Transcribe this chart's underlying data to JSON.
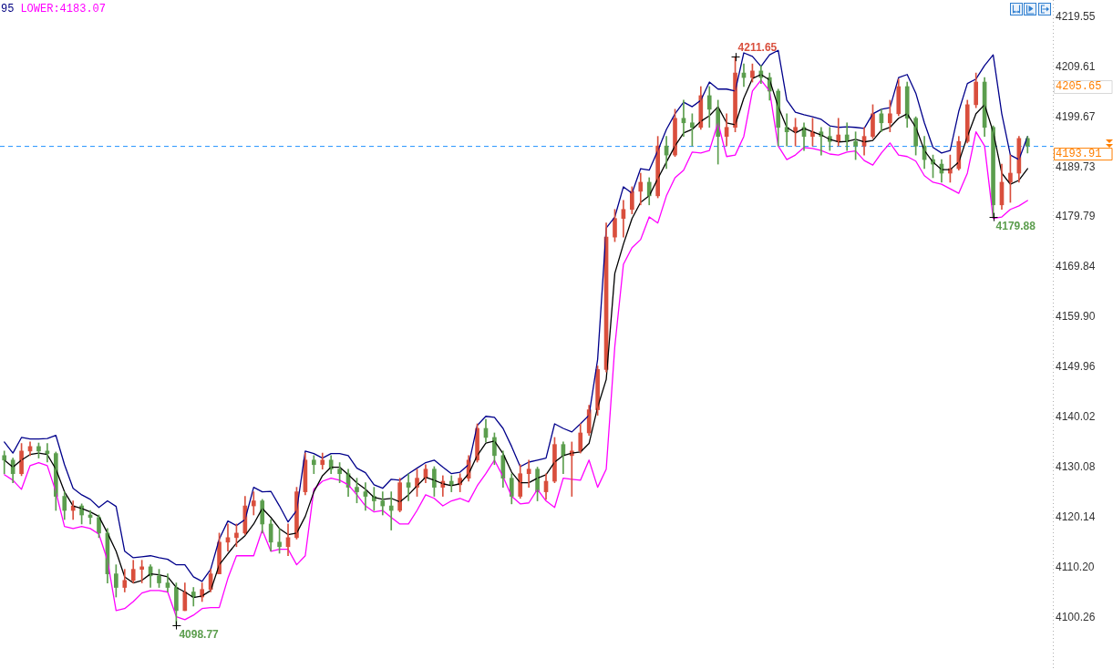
{
  "chart_data": {
    "type": "candlestick",
    "categories": [
      null,
      null,
      null,
      null,
      null,
      null,
      null,
      null,
      null,
      null,
      null,
      null,
      null,
      null,
      null,
      null,
      null,
      null,
      null,
      null,
      null,
      null,
      null,
      null,
      null,
      null,
      null,
      null,
      null,
      null,
      null,
      null,
      null,
      null,
      null,
      null,
      null,
      null,
      null,
      null,
      null,
      null,
      null,
      null,
      null,
      null,
      null,
      null,
      null,
      null,
      null,
      null,
      null,
      null,
      null,
      null,
      null,
      null,
      null,
      null,
      null,
      null,
      null,
      null,
      null,
      null,
      null,
      null,
      null,
      null,
      null,
      null,
      null,
      null,
      null,
      null,
      null,
      null,
      null,
      null,
      null,
      null,
      null,
      null,
      null,
      null,
      null,
      null,
      null,
      null,
      null,
      null,
      null,
      null,
      null,
      null,
      null,
      null,
      null,
      null,
      null,
      null,
      null,
      null,
      null,
      null,
      null,
      null,
      null,
      null,
      null,
      null,
      null,
      null,
      null,
      null,
      null,
      null,
      null,
      null
    ],
    "ohlc": [
      [
        4132.4,
        4133.3,
        4128.8,
        4131.5
      ],
      [
        4131.5,
        4131.9,
        4127.0,
        4128.8
      ],
      [
        4128.8,
        4134.8,
        4128.4,
        4133.3
      ],
      [
        4133.3,
        4135.1,
        4132.4,
        4134.2
      ],
      [
        4134.2,
        4134.9,
        4131.9,
        4133.3
      ],
      [
        4133.3,
        4134.8,
        4131.1,
        4132.8
      ],
      [
        4132.8,
        4133.1,
        4121.5,
        4124.3
      ],
      [
        4124.3,
        4125.2,
        4119.7,
        4121.5
      ],
      [
        4121.5,
        4123.4,
        4119.7,
        4122.4
      ],
      [
        4122.4,
        4122.8,
        4118.8,
        4120.6
      ],
      [
        4120.6,
        4121.5,
        4118.8,
        4120.1
      ],
      [
        4120.1,
        4120.6,
        4116.1,
        4117.0
      ],
      [
        4117.0,
        4117.9,
        4107.1,
        4108.9
      ],
      [
        4108.9,
        4110.7,
        4104.3,
        4106.2
      ],
      [
        4106.2,
        4109.8,
        4105.3,
        4107.6
      ],
      [
        4107.6,
        4111.6,
        4107.1,
        4109.8
      ],
      [
        4109.8,
        4111.6,
        4107.1,
        4110.3
      ],
      [
        4110.3,
        4110.7,
        4106.2,
        4108.5
      ],
      [
        4108.5,
        4109.8,
        4106.2,
        4107.1
      ],
      [
        4107.1,
        4108.9,
        4105.3,
        4106.2
      ],
      [
        4106.2,
        4107.1,
        4098.77,
        4101.6
      ],
      [
        4101.6,
        4107.1,
        4101.6,
        4105.3
      ],
      [
        4105.3,
        4106.2,
        4102.5,
        4104.3
      ],
      [
        4104.3,
        4107.1,
        4103.4,
        4105.8
      ],
      [
        4105.8,
        4109.8,
        4105.3,
        4108.9
      ],
      [
        4108.9,
        4117.0,
        4108.9,
        4115.2
      ],
      [
        4115.2,
        4118.8,
        4113.4,
        4116.1
      ],
      [
        4116.1,
        4118.8,
        4114.3,
        4117.0
      ],
      [
        4117.0,
        4124.3,
        4116.7,
        4122.4
      ],
      [
        4122.4,
        4125.2,
        4120.6,
        4123.4
      ],
      [
        4123.4,
        4123.7,
        4117.0,
        4118.8
      ],
      [
        4118.8,
        4119.7,
        4113.4,
        4115.2
      ],
      [
        4115.2,
        4117.9,
        4113.0,
        4114.3
      ],
      [
        4114.3,
        4118.8,
        4112.5,
        4116.1
      ],
      [
        4116.1,
        4126.1,
        4115.8,
        4125.2
      ],
      [
        4125.2,
        4132.9,
        4124.6,
        4131.5
      ],
      [
        4131.5,
        4132.4,
        4128.8,
        4130.6
      ],
      [
        4130.6,
        4132.9,
        4129.7,
        4131.5
      ],
      [
        4131.5,
        4132.4,
        4128.8,
        4129.7
      ],
      [
        4129.7,
        4131.0,
        4127.0,
        4128.8
      ],
      [
        4128.8,
        4129.7,
        4124.3,
        4126.1
      ],
      [
        4126.1,
        4127.9,
        4123.0,
        4125.2
      ],
      [
        4125.2,
        4127.0,
        4121.5,
        4124.3
      ],
      [
        4124.3,
        4126.1,
        4121.5,
        4123.4
      ],
      [
        4123.4,
        4125.2,
        4120.6,
        4122.4
      ],
      [
        4122.4,
        4125.2,
        4117.6,
        4121.5
      ],
      [
        4121.5,
        4127.9,
        4121.2,
        4127.0
      ],
      [
        4127.0,
        4128.8,
        4123.4,
        4126.1
      ],
      [
        4126.1,
        4129.7,
        4124.3,
        4127.9
      ],
      [
        4127.9,
        4130.6,
        4127.0,
        4129.7
      ],
      [
        4129.7,
        4130.2,
        4124.3,
        4126.1
      ],
      [
        4126.1,
        4128.4,
        4124.3,
        4127.3
      ],
      [
        4127.3,
        4128.4,
        4125.2,
        4126.6
      ],
      [
        4126.6,
        4128.8,
        4125.2,
        4127.9
      ],
      [
        4127.9,
        4132.4,
        4127.3,
        4131.5
      ],
      [
        4131.5,
        4138.7,
        4131.1,
        4137.8
      ],
      [
        4137.8,
        4139.6,
        4135.1,
        4136.0
      ],
      [
        4136.0,
        4136.9,
        4130.6,
        4132.4
      ],
      [
        4132.4,
        4133.3,
        4126.1,
        4127.9
      ],
      [
        4127.9,
        4128.8,
        4122.8,
        4124.3
      ],
      [
        4124.3,
        4130.6,
        4123.9,
        4128.8
      ],
      [
        4128.8,
        4131.5,
        4126.1,
        4129.7
      ],
      [
        4129.7,
        4130.1,
        4123.4,
        4125.2
      ],
      [
        4125.2,
        4128.8,
        4123.7,
        4127.3
      ],
      [
        4127.3,
        4136.0,
        4127.0,
        4134.6
      ],
      [
        4134.6,
        4135.1,
        4128.8,
        4132.4
      ],
      [
        4132.4,
        4135.1,
        4124.3,
        4133.3
      ],
      [
        4133.3,
        4138.7,
        4132.9,
        4136.9
      ],
      [
        4136.9,
        4142.4,
        4136.4,
        4141.5
      ],
      [
        4141.5,
        4150.2,
        4140.4,
        4149.5
      ],
      [
        4149.5,
        4178.6,
        4149.0,
        4175.8
      ],
      [
        4175.8,
        4181.3,
        4174.9,
        4179.5
      ],
      [
        4179.5,
        4183.1,
        4175.8,
        4181.3
      ],
      [
        4181.3,
        4185.8,
        4180.4,
        4184.9
      ],
      [
        4184.9,
        4188.5,
        4182.2,
        4186.7
      ],
      [
        4186.7,
        4187.6,
        4182.2,
        4184.0
      ],
      [
        4184.0,
        4195.8,
        4183.6,
        4193.9
      ],
      [
        4193.9,
        4195.8,
        4189.4,
        4192.1
      ],
      [
        4192.1,
        4201.2,
        4191.8,
        4199.4
      ],
      [
        4199.4,
        4203.0,
        4195.8,
        4198.5
      ],
      [
        4198.5,
        4200.3,
        4193.9,
        4197.6
      ],
      [
        4197.6,
        4205.7,
        4197.2,
        4203.9
      ],
      [
        4203.9,
        4205.7,
        4197.6,
        4201.2
      ],
      [
        4201.2,
        4203.0,
        4190.3,
        4195.8
      ],
      [
        4195.8,
        4200.3,
        4193.9,
        4197.6
      ],
      [
        4197.6,
        4211.65,
        4196.7,
        4208.4
      ],
      [
        4208.4,
        4210.2,
        4205.7,
        4207.5
      ],
      [
        4207.5,
        4210.2,
        4206.6,
        4208.8
      ],
      [
        4208.8,
        4209.9,
        4206.3,
        4207.5
      ],
      [
        4207.5,
        4208.4,
        4203.0,
        4204.8
      ],
      [
        4204.8,
        4205.2,
        4193.9,
        4197.6
      ],
      [
        4197.6,
        4200.3,
        4193.9,
        4196.7
      ],
      [
        4196.7,
        4199.4,
        4193.9,
        4197.6
      ],
      [
        4197.6,
        4198.5,
        4193.0,
        4195.8
      ],
      [
        4195.8,
        4199.4,
        4193.9,
        4196.7
      ],
      [
        4196.7,
        4197.6,
        4192.1,
        4195.8
      ],
      [
        4195.8,
        4197.6,
        4193.0,
        4194.8
      ],
      [
        4194.8,
        4199.4,
        4193.9,
        4196.1
      ],
      [
        4196.1,
        4198.5,
        4193.0,
        4194.8
      ],
      [
        4194.8,
        4196.7,
        4191.2,
        4193.9
      ],
      [
        4193.9,
        4197.6,
        4192.1,
        4195.8
      ],
      [
        4195.8,
        4202.1,
        4195.4,
        4200.3
      ],
      [
        4200.3,
        4201.2,
        4196.7,
        4198.5
      ],
      [
        4198.5,
        4203.0,
        4196.7,
        4200.3
      ],
      [
        4200.3,
        4207.2,
        4199.9,
        4205.7
      ],
      [
        4205.7,
        4206.6,
        4197.6,
        4199.4
      ],
      [
        4199.4,
        4199.7,
        4192.1,
        4193.9
      ],
      [
        4193.9,
        4195.8,
        4189.4,
        4191.2
      ],
      [
        4191.2,
        4192.1,
        4187.6,
        4190.3
      ],
      [
        4190.3,
        4191.2,
        4186.7,
        4188.5
      ],
      [
        4188.5,
        4192.1,
        4186.7,
        4189.4
      ],
      [
        4189.4,
        4195.8,
        4189.1,
        4194.8
      ],
      [
        4194.8,
        4203.0,
        4194.5,
        4202.1
      ],
      [
        4202.1,
        4208.4,
        4201.5,
        4206.6
      ],
      [
        4206.6,
        4207.5,
        4195.8,
        4197.6
      ],
      [
        4197.6,
        4197.9,
        4179.88,
        4182.2
      ],
      [
        4182.2,
        4190.3,
        4181.3,
        4186.7
      ],
      [
        4186.7,
        4192.1,
        4182.7,
        4188.5
      ],
      [
        4188.5,
        4195.8,
        4186.7,
        4195.4
      ],
      [
        4195.4,
        4195.8,
        4192.5,
        4193.91
      ]
    ],
    "value_labels": [
      null,
      null,
      null,
      null,
      null,
      null,
      null,
      null,
      null,
      null,
      null,
      null,
      null,
      null,
      null,
      null,
      null,
      null,
      null,
      null,
      "4098.77",
      null,
      null,
      null,
      null,
      null,
      null,
      null,
      null,
      null,
      null,
      null,
      null,
      null,
      null,
      null,
      null,
      null,
      null,
      null,
      null,
      null,
      null,
      null,
      null,
      null,
      null,
      null,
      null,
      null,
      null,
      null,
      null,
      null,
      null,
      null,
      null,
      null,
      null,
      null,
      null,
      null,
      null,
      null,
      null,
      null,
      null,
      null,
      null,
      null,
      null,
      null,
      null,
      null,
      null,
      null,
      null,
      null,
      null,
      null,
      null,
      null,
      null,
      null,
      null,
      "4211.65",
      null,
      null,
      null,
      null,
      null,
      null,
      null,
      null,
      null,
      null,
      null,
      null,
      null,
      null,
      null,
      null,
      null,
      null,
      null,
      null,
      null,
      null,
      null,
      null,
      null,
      null,
      null,
      null,
      null,
      "4179.88",
      null,
      null,
      null,
      null
    ],
    "colors": [
      "#5c9e4e",
      "#5c9e4e",
      "#d94f3d",
      "#d94f3d",
      "#5c9e4e",
      "#5c9e4e",
      "#5c9e4e",
      "#5c9e4e",
      "#d94f3d",
      "#5c9e4e",
      "#5c9e4e",
      "#5c9e4e",
      "#5c9e4e",
      "#5c9e4e",
      "#d94f3d",
      "#d94f3d",
      "#d94f3d",
      "#5c9e4e",
      "#5c9e4e",
      "#5c9e4e",
      "#5c9e4e",
      "#d94f3d",
      "#5c9e4e",
      "#d94f3d",
      "#d94f3d",
      "#d94f3d",
      "#d94f3d",
      "#d94f3d",
      "#d94f3d",
      "#d94f3d",
      "#5c9e4e",
      "#5c9e4e",
      "#5c9e4e",
      "#d94f3d",
      "#d94f3d",
      "#d94f3d",
      "#5c9e4e",
      "#d94f3d",
      "#5c9e4e",
      "#5c9e4e",
      "#5c9e4e",
      "#5c9e4e",
      "#5c9e4e",
      "#5c9e4e",
      "#5c9e4e",
      "#5c9e4e",
      "#d94f3d",
      "#5c9e4e",
      "#d94f3d",
      "#d94f3d",
      "#5c9e4e",
      "#d94f3d",
      "#5c9e4e",
      "#d94f3d",
      "#d94f3d",
      "#d94f3d",
      "#5c9e4e",
      "#5c9e4e",
      "#5c9e4e",
      "#5c9e4e",
      "#d94f3d",
      "#d94f3d",
      "#5c9e4e",
      "#d94f3d",
      "#d94f3d",
      "#5c9e4e",
      "#d94f3d",
      "#d94f3d",
      "#d94f3d",
      "#d94f3d",
      "#d94f3d",
      "#d94f3d",
      "#d94f3d",
      "#d94f3d",
      "#d94f3d",
      "#5c9e4e",
      "#d94f3d",
      "#5c9e4e",
      "#d94f3d",
      "#5c9e4e",
      "#5c9e4e",
      "#d94f3d",
      "#5c9e4e",
      "#5c9e4e",
      "#d94f3d",
      "#d94f3d",
      "#5c9e4e",
      "#d94f3d",
      "#5c9e4e",
      "#5c9e4e",
      "#5c9e4e",
      "#5c9e4e",
      "#d94f3d",
      "#5c9e4e",
      "#d94f3d",
      "#5c9e4e",
      "#5c9e4e",
      "#d94f3d",
      "#5c9e4e",
      "#5c9e4e",
      "#d94f3d",
      "#d94f3d",
      "#5c9e4e",
      "#d94f3d",
      "#d94f3d",
      "#5c9e4e",
      "#5c9e4e",
      "#5c9e4e",
      "#5c9e4e",
      "#5c9e4e",
      "#d94f3d",
      "#d94f3d",
      "#d94f3d",
      "#d94f3d",
      "#5c9e4e",
      "#5c9e4e",
      "#d94f3d",
      "#d94f3d",
      "#d94f3d",
      "#5c9e4e"
    ],
    "series": [
      {
        "type": "line",
        "color": "#00008b",
        "values": [
          4135.1,
          4132.9,
          4136.0,
          4135.7,
          4135.7,
          4135.8,
          4136.4,
          4130.6,
          4125.9,
          4124.6,
          4123.7,
          4122.1,
          4123.4,
          4122.3,
          4113.4,
          4112.1,
          4112.3,
          4112.5,
          4112.1,
          4111.8,
          4110.7,
          4110.7,
          4108.3,
          4107.4,
          4109.8,
          4115.8,
          4119.4,
          4118.5,
          4119.7,
          4126.1,
          4125.2,
          4125.3,
          4122.4,
          4119.2,
          4121.5,
          4133.3,
          4132.8,
          4131.9,
          4132.8,
          4132.8,
          4132.4,
          4129.9,
          4129.0,
          4126.6,
          4125.9,
          4127.7,
          4127.5,
          4128.8,
          4129.9,
          4131.0,
          4131.5,
          4130.1,
          4128.8,
          4129.1,
          4130.6,
          4138.4,
          4140.2,
          4140.0,
          4137.8,
          4134.2,
          4130.2,
          4131.1,
          4131.5,
          4131.9,
          4138.7,
          4137.8,
          4137.1,
          4138.7,
          4140.4,
          4151.5,
          4177.6,
          4179.8,
          4185.8,
          4184.5,
          4189.4,
          4189.1,
          4193.0,
          4197.2,
          4200.3,
          4202.6,
          4201.7,
          4203.0,
          4206.6,
          4205.2,
          4205.2,
          4204.8,
          4212.4,
          4211.7,
          4209.7,
          4212.0,
          4212.9,
          4203.0,
          4200.6,
          4200.1,
          4199.7,
          4199.2,
          4197.9,
          4197.6,
          4197.7,
          4197.6,
          4197.4,
          4200.3,
          4201.2,
          4201.5,
          4207.5,
          4208.1,
          4204.4,
          4198.5,
          4193.6,
          4192.5,
          4193.0,
          4200.8,
          4206.3,
          4207.2,
          4209.9,
          4212.0,
          4200.3,
          4192.1,
          4191.2,
          4195.8
        ]
      },
      {
        "type": "line",
        "color": "#000000",
        "values": [
          4131.5,
          4130.1,
          4131.5,
          4132.6,
          4132.9,
          4132.6,
          4129.7,
          4125.2,
          4122.4,
          4121.9,
          4121.2,
          4120.3,
          4117.0,
          4113.4,
          4108.3,
          4107.1,
          4107.6,
          4108.9,
          4108.7,
          4108.3,
          4106.2,
          4105.3,
          4104.2,
          4104.5,
          4105.6,
          4110.7,
          4112.9,
          4115.0,
          4116.5,
          4118.8,
          4121.9,
          4120.1,
          4117.9,
          4116.7,
          4117.0,
          4120.3,
          4125.2,
          4128.4,
          4130.1,
          4130.1,
          4128.6,
          4127.0,
          4125.7,
          4124.1,
          4123.7,
          4123.9,
          4123.2,
          4124.6,
          4126.4,
          4128.1,
          4127.5,
          4126.8,
          4126.4,
          4126.8,
          4128.8,
          4132.4,
          4134.9,
          4135.3,
          4132.8,
          4129.1,
          4127.0,
          4127.0,
          4127.9,
          4128.6,
          4131.1,
          4132.4,
          4132.9,
          4133.1,
          4134.8,
          4142.0,
          4147.5,
          4168.6,
          4174.4,
          4179.5,
          4182.7,
          4184.0,
          4187.4,
          4190.7,
          4193.9,
          4196.5,
          4197.2,
          4198.8,
          4199.9,
          4201.7,
          4198.5,
          4198.1,
          4203.4,
          4207.3,
          4208.1,
          4207.0,
          4201.7,
          4197.6,
          4196.5,
          4197.4,
          4196.7,
          4196.1,
          4195.2,
          4194.7,
          4194.8,
          4195.2,
          4194.7,
          4195.0,
          4197.0,
          4197.6,
          4199.4,
          4200.3,
          4197.6,
          4193.0,
          4190.7,
          4189.2,
          4189.2,
          4190.7,
          4195.8,
          4200.3,
          4202.1,
          4196.7,
          4188.5,
          4186.3,
          4187.1,
          4189.4
        ]
      },
      {
        "type": "line",
        "color": "#ff00ff",
        "values": [
          4128.6,
          4127.5,
          4125.7,
          4130.4,
          4131.0,
          4130.4,
          4125.2,
          4118.3,
          4117.9,
          4118.3,
          4117.9,
          4116.8,
          4111.6,
          4101.6,
          4102.0,
          4103.4,
          4105.1,
          4105.6,
          4105.6,
          4105.3,
          4100.4,
          4099.8,
          4100.7,
          4102.0,
          4102.2,
          4102.2,
          4108.0,
          4112.5,
          4112.5,
          4112.5,
          4117.6,
          4113.4,
          4113.8,
          4113.8,
          4110.7,
          4112.5,
          4125.7,
          4127.3,
          4127.9,
          4127.5,
          4126.6,
          4124.6,
          4122.4,
          4121.2,
          4121.5,
          4120.1,
          4118.8,
          4118.8,
          4121.5,
          4124.6,
          4123.9,
          4122.4,
          4123.4,
          4123.9,
          4123.2,
          4126.4,
          4128.8,
          4131.5,
          4128.2,
          4124.3,
          4122.8,
          4123.0,
          4125.7,
          4123.4,
          4122.1,
          4127.9,
          4127.7,
          4127.5,
          4131.5,
          4126.1,
          4129.7,
          4154.1,
          4170.4,
          4173.7,
          4175.3,
          4179.8,
          4178.6,
          4184.0,
          4187.6,
          4189.1,
          4192.7,
          4192.5,
          4193.0,
          4198.5,
          4191.8,
          4192.1,
          4195.8,
          4204.8,
          4207.0,
          4204.8,
          4193.9,
          4191.2,
          4192.1,
          4193.6,
          4193.4,
          4193.0,
          4192.3,
          4192.1,
          4192.7,
          4192.9,
          4191.0,
          4190.1,
          4192.5,
          4194.5,
          4192.1,
          4191.8,
          4190.9,
          4188.0,
          4186.7,
          4186.3,
          4185.4,
          4184.5,
          4188.5,
          4196.7,
          4193.9,
          4179.5,
          4179.8,
          4181.3,
          4182.0,
          4183.07
        ]
      }
    ],
    "ylim": [
      4090.0,
      4222.9
    ],
    "yticks": [
      4100.26,
      {
        "value": 4110.2,
        "label": "4110.20"
      },
      4120.14,
      4130.08,
      4140.02,
      4149.96,
      {
        "value": 4159.9,
        "label": "4159.90"
      },
      4169.84,
      4179.79,
      4189.73,
      4199.67,
      4205.65,
      4209.61,
      4219.55
    ],
    "tick_labels": "y",
    "grid": false,
    "legend": false,
    "marker": "none",
    "ref_lines": [
      {
        "axis": "y",
        "value": 4193.91,
        "label": "4193.91",
        "color": "#1e90ff",
        "line_style": "dashed"
      }
    ],
    "annotations": [
      "95",
      "LOWER:4183.07"
    ]
  }
}
